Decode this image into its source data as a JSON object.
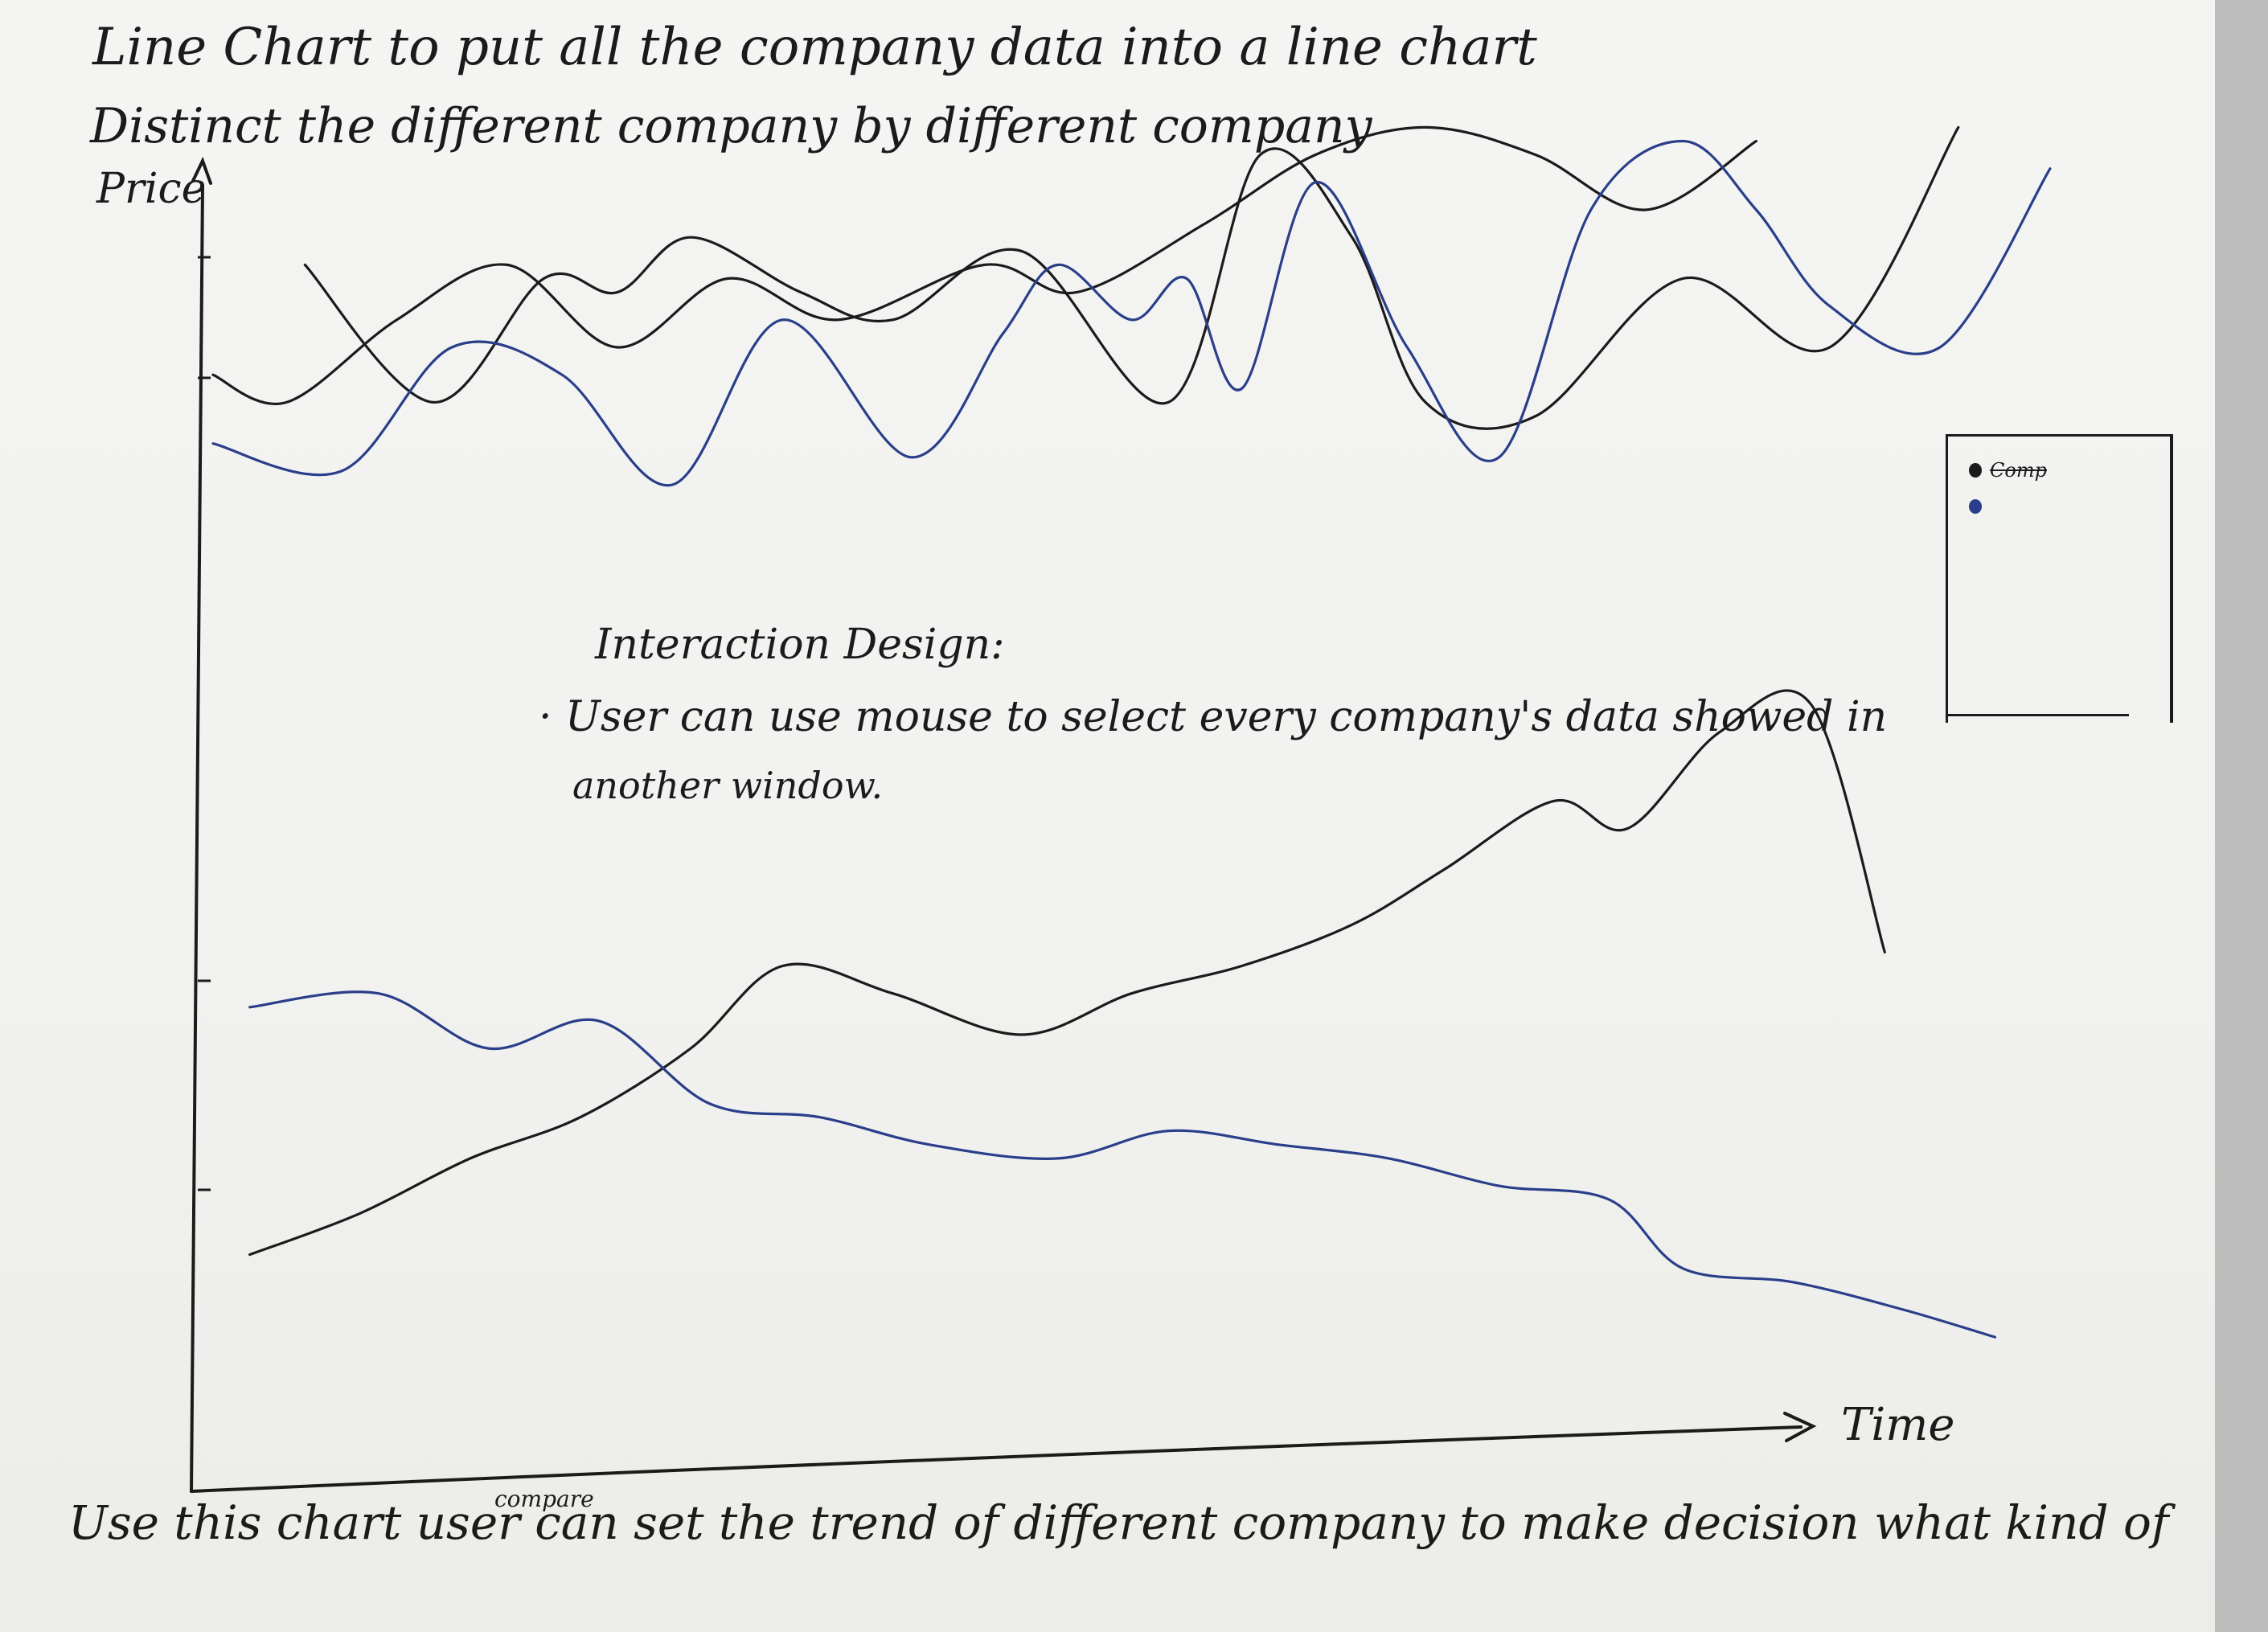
{
  "notes": {
    "title_line1": "Line Chart to put all the company data into a line chart",
    "title_line2": "Distinct the different company by different company",
    "y_axis_label": "Price",
    "x_axis_label": "Time",
    "interaction_heading": "Interaction Design:",
    "interaction_bullet_line1": "· User can use mouse to select every company's data showed in",
    "interaction_bullet_line2": "another window.",
    "bottom_note": "Use this chart user can set the trend of different company to make decision what kind of",
    "bottom_note_insert": "compare"
  },
  "legend": {
    "item_1_label": "Comp",
    "item_1_color": "#1b1b1b",
    "item_2_color": "#2a3e8a"
  },
  "colors": {
    "black_ink": "#1b1b1b",
    "blue_ink": "#2a3e8a",
    "paper": "#f3f3f1"
  },
  "chart_data": {
    "type": "line",
    "title": "",
    "xlabel": "Time",
    "ylabel": "Price",
    "xlim": [
      0,
      100
    ],
    "ylim": [
      0,
      100
    ],
    "grid": false,
    "legend_position": "right",
    "series": [
      {
        "color": "#1b1b1b",
        "x": [
          0,
          4,
          10,
          16,
          22,
          28,
          34,
          42,
          47,
          54,
          60,
          66,
          72,
          78,
          84
        ],
        "values": [
          78,
          76,
          82,
          86,
          80,
          85,
          82,
          86,
          84,
          89,
          94,
          96,
          94,
          90,
          95
        ]
      },
      {
        "color": "#1b1b1b",
        "x": [
          5,
          12,
          18,
          22,
          26,
          32,
          37,
          44,
          52,
          57,
          62,
          66,
          72,
          80,
          88,
          95
        ],
        "values": [
          86,
          76,
          85,
          84,
          88,
          84,
          82,
          87,
          76,
          94,
          88,
          76,
          75,
          85,
          80,
          96
        ]
      },
      {
        "color": "#2a3e8a",
        "x": [
          0,
          7,
          13,
          19,
          25,
          31,
          38,
          43,
          46,
          50,
          53,
          56,
          60,
          65,
          70,
          75,
          80,
          84,
          88,
          94,
          100
        ],
        "values": [
          73,
          71,
          80,
          78,
          70,
          82,
          72,
          81,
          86,
          82,
          85,
          77,
          92,
          80,
          72,
          90,
          95,
          90,
          83,
          80,
          93
        ]
      },
      {
        "color": "#1b1b1b",
        "x": [
          2,
          8,
          14,
          20,
          26,
          31,
          37,
          44,
          50,
          56,
          62,
          67,
          73,
          77,
          82,
          87,
          91
        ],
        "values": [
          14,
          17,
          21,
          24,
          29,
          35,
          33,
          30,
          33,
          35,
          38,
          42,
          47,
          45,
          52,
          54,
          36
        ]
      },
      {
        "color": "#2a3e8a",
        "x": [
          2,
          9,
          15,
          21,
          27,
          33,
          39,
          46,
          52,
          58,
          64,
          70,
          76,
          80,
          86,
          92,
          97
        ],
        "values": [
          32,
          33,
          29,
          31,
          25,
          24,
          22,
          21,
          23,
          22,
          21,
          19,
          18,
          13,
          12,
          10,
          8
        ]
      }
    ]
  }
}
